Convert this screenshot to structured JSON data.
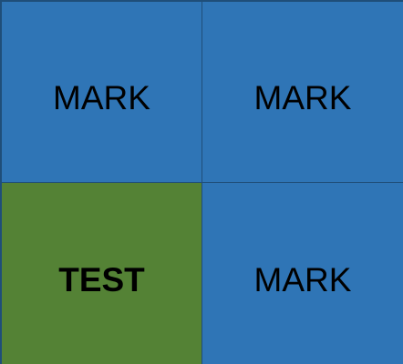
{
  "cells": [
    {
      "label": "MARK",
      "color": "#2f75b6"
    },
    {
      "label": "MARK",
      "color": "#2f75b6"
    },
    {
      "label": "TEST",
      "color": "#548235"
    },
    {
      "label": "MARK",
      "color": "#2f75b6"
    }
  ],
  "border_color": "#1f4e79"
}
